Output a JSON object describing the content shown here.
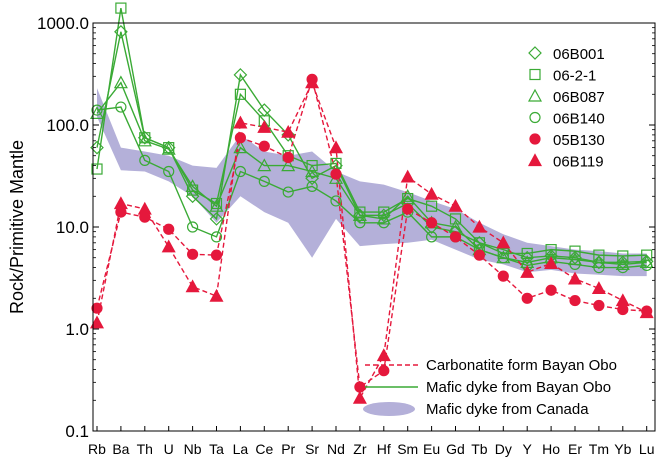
{
  "chart_data": {
    "type": "line",
    "ylabel": "Rock/Primitive Mantle",
    "yscale": "log",
    "ylim": [
      0.1,
      1000
    ],
    "yticks": [
      {
        "value": 0.1,
        "label": "0.1"
      },
      {
        "value": 1,
        "label": "1.0"
      },
      {
        "value": 10,
        "label": "10.0"
      },
      {
        "value": 100,
        "label": "100.0"
      },
      {
        "value": 1000,
        "label": "1000.0"
      }
    ],
    "categories": [
      "Rb",
      "Ba",
      "Th",
      "U",
      "Nb",
      "Ta",
      "La",
      "Ce",
      "Pr",
      "Sr",
      "Nd",
      "Zr",
      "Hf",
      "Sm",
      "Eu",
      "Gd",
      "Tb",
      "Dy",
      "Y",
      "Ho",
      "Er",
      "Tm",
      "Yb",
      "Lu"
    ],
    "colors": {
      "green": "#3aaa35",
      "red": "#e5183c",
      "band": "#b4b0d9"
    },
    "series": [
      {
        "name": "06B001",
        "group": "mafic",
        "marker": "diamond",
        "color": "#3aaa35",
        "values": [
          60,
          820,
          75,
          60,
          20,
          12,
          310,
          140,
          80,
          30,
          40,
          13,
          13,
          17,
          10,
          9,
          7,
          6,
          5,
          5.2,
          5,
          4.5,
          4.5,
          4.6
        ]
      },
      {
        "name": "06-2-1",
        "group": "mafic",
        "marker": "square",
        "color": "#3aaa35",
        "values": [
          37,
          1400,
          75,
          60,
          23,
          17,
          200,
          110,
          50,
          40,
          42,
          14,
          14,
          19,
          16,
          12,
          7,
          5.5,
          5.5,
          6,
          5.8,
          5.3,
          5.2,
          5.3
        ]
      },
      {
        "name": "06B087",
        "group": "mafic",
        "marker": "triangle",
        "color": "#3aaa35",
        "values": [
          130,
          260,
          70,
          58,
          25,
          16,
          60,
          40,
          40,
          35,
          30,
          13,
          12,
          20,
          11,
          10,
          6,
          5,
          4.5,
          5,
          4.8,
          4.5,
          4.3,
          4.5
        ]
      },
      {
        "name": "06B140",
        "group": "mafic",
        "marker": "circle",
        "color": "#3aaa35",
        "values": [
          140,
          150,
          45,
          35,
          10,
          8,
          35,
          28,
          22,
          25,
          18,
          11,
          11,
          14,
          8,
          8,
          6,
          5,
          4.2,
          4.6,
          4.3,
          4,
          4,
          4.2
        ]
      },
      {
        "name": "05B130",
        "group": "carbonatite",
        "marker": "circle-filled",
        "color": "#e5183c",
        "values": [
          1.6,
          14,
          12.5,
          9.5,
          5.4,
          5.3,
          75,
          62,
          48,
          280,
          33,
          0.27,
          0.39,
          15,
          11,
          8,
          5.3,
          3.3,
          2,
          2.4,
          1.9,
          1.7,
          1.55,
          1.5
        ]
      },
      {
        "name": "06B119",
        "group": "carbonatite",
        "marker": "triangle-filled",
        "color": "#e5183c",
        "values": [
          1.15,
          17,
          15,
          6.4,
          2.6,
          2.1,
          105,
          95,
          85,
          260,
          60,
          0.21,
          0.55,
          31,
          21,
          16,
          10,
          7,
          3.6,
          4.4,
          3.1,
          2.5,
          1.9,
          1.45
        ]
      }
    ],
    "band": {
      "label": "Mafic dyke from Canada",
      "upper": [
        230,
        60,
        55,
        50,
        40,
        38,
        80,
        55,
        50,
        55,
        35,
        28,
        26,
        22,
        18,
        15,
        11,
        8.5,
        7,
        6.5,
        6,
        5.8,
        5.5,
        5.5
      ],
      "lower": [
        120,
        36,
        35,
        28,
        20,
        11,
        20,
        14,
        11,
        5,
        12,
        6.5,
        6.8,
        7,
        7.5,
        6,
        4.8,
        4.3,
        3.6,
        3.8,
        3.5,
        3.4,
        3.3,
        3.3
      ]
    },
    "legend": {
      "placement": "top-right",
      "items": [
        "06B001",
        "06-2-1",
        "06B087",
        "06B140",
        "05B130",
        "06B119"
      ]
    },
    "key": {
      "placement": "bottom-right",
      "items": [
        {
          "label": "Carbonatite form Bayan Obo",
          "style": "dashed-red"
        },
        {
          "label": "Mafic dyke from Bayan Obo",
          "style": "solid-green"
        },
        {
          "label": "Mafic dyke from Canada",
          "style": "band"
        }
      ]
    },
    "grid": false
  }
}
